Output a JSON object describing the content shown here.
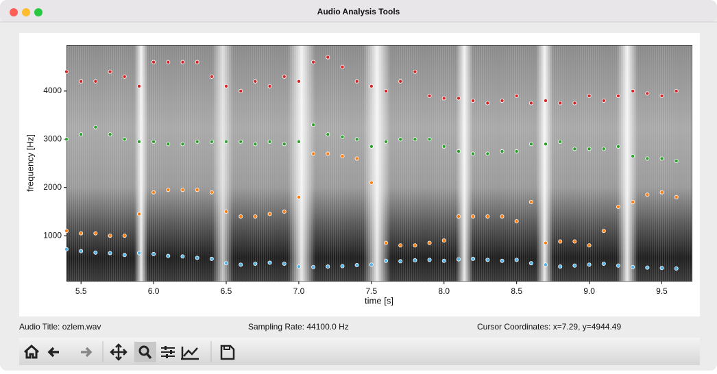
{
  "window_title": "Audio Analysis Tools",
  "chart_data": {
    "type": "scatter",
    "xlabel": "time [s]",
    "ylabel": "frequency [Hz]",
    "xlim": [
      5.4,
      9.71
    ],
    "ylim": [
      50,
      4950
    ],
    "xticks": [
      5.5,
      {
        "value": 6,
        "label": "6.0"
      },
      6.5,
      {
        "value": 7,
        "label": "7.0"
      },
      7.5,
      {
        "value": 8,
        "label": "8.0"
      },
      8.5,
      {
        "value": 9,
        "label": "9.0"
      },
      9.5
    ],
    "yticks": [
      1000,
      2000,
      3000,
      4000
    ],
    "grid": false,
    "x": [
      5.4,
      5.5,
      5.6,
      5.7,
      5.8,
      5.9,
      6.0,
      6.1,
      6.2,
      6.3,
      6.4,
      6.5,
      6.6,
      6.7,
      6.8,
      6.9,
      7.0,
      7.1,
      7.2,
      7.3,
      7.4,
      7.5,
      7.6,
      7.7,
      7.8,
      7.9,
      8.0,
      8.1,
      8.2,
      8.3,
      8.4,
      8.5,
      8.6,
      8.7,
      8.8,
      8.9,
      9.0,
      9.1,
      9.2,
      9.3,
      9.4,
      9.5,
      9.6
    ],
    "series": [
      {
        "color": "#4fb3e8",
        "values": [
          720,
          680,
          650,
          640,
          600,
          640,
          620,
          580,
          570,
          540,
          520,
          430,
          400,
          420,
          440,
          420,
          360,
          350,
          360,
          370,
          390,
          400,
          480,
          470,
          490,
          500,
          480,
          510,
          520,
          500,
          480,
          500,
          430,
          400,
          360,
          380,
          400,
          420,
          380,
          350,
          340,
          330,
          320
        ]
      },
      {
        "color": "#ff7f0e",
        "values": [
          1100,
          1050,
          1050,
          1000,
          1000,
          1450,
          1900,
          1950,
          1950,
          1950,
          1900,
          1500,
          1400,
          1400,
          1450,
          1500,
          1800,
          2700,
          2700,
          2650,
          2600,
          2100,
          850,
          800,
          800,
          850,
          900,
          1400,
          1400,
          1400,
          1400,
          1300,
          1700,
          850,
          880,
          880,
          800,
          1100,
          1600,
          1700,
          1850,
          1900,
          1800
        ]
      },
      {
        "color": "#2ca02c",
        "values": [
          3000,
          3100,
          3250,
          3100,
          3000,
          2950,
          2950,
          2900,
          2900,
          2950,
          2950,
          2950,
          2950,
          2900,
          2950,
          2900,
          2950,
          3300,
          3100,
          3050,
          3000,
          2850,
          2950,
          3000,
          3000,
          3000,
          2850,
          2750,
          2700,
          2700,
          2750,
          2750,
          2900,
          2900,
          2950,
          2800,
          2800,
          2800,
          2850,
          2650,
          2600,
          2600,
          2550
        ]
      },
      {
        "color": "#d62728",
        "values": [
          4400,
          4200,
          4200,
          4400,
          4300,
          4100,
          4600,
          4600,
          4600,
          4600,
          4300,
          4100,
          4000,
          4200,
          4100,
          4300,
          4200,
          4600,
          4700,
          4500,
          4200,
          4100,
          4000,
          4200,
          4400,
          3900,
          3850,
          3850,
          3800,
          3750,
          3800,
          3900,
          3750,
          3800,
          3750,
          3750,
          3900,
          3800,
          3900,
          4000,
          3950,
          3900,
          4000
        ]
      }
    ]
  },
  "status": {
    "audio_title": "Audio Title: ozlem.wav",
    "sampling_rate": "Sampling Rate: 44100.0 Hz",
    "cursor": "Cursor Coordinates: x=7.29, y=4944.49"
  }
}
